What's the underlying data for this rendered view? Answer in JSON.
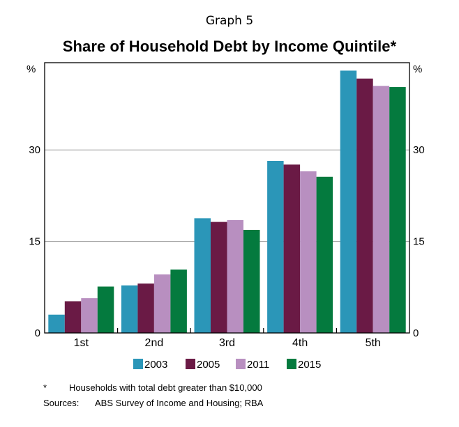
{
  "graph_label": "Graph 5",
  "colors": {
    "2003": "#2b96b8",
    "2005": "#6a1a45",
    "2011": "#b88fc0",
    "2015": "#047a3e"
  },
  "chart_data": {
    "type": "bar",
    "title": "Share of Household Debt by Income Quintile*",
    "unit_left": "%",
    "unit_right": "%",
    "categories": [
      "1st",
      "2nd",
      "3rd",
      "4th",
      "5th"
    ],
    "series": [
      {
        "name": "2003",
        "values": [
          3.0,
          7.8,
          18.8,
          28.2,
          43.0
        ]
      },
      {
        "name": "2005",
        "values": [
          5.2,
          8.1,
          18.2,
          27.6,
          41.7
        ]
      },
      {
        "name": "2011",
        "values": [
          5.7,
          9.6,
          18.5,
          26.5,
          40.5
        ]
      },
      {
        "name": "2015",
        "values": [
          7.6,
          10.4,
          16.9,
          25.6,
          40.3
        ]
      }
    ],
    "yticks": [
      0,
      15,
      30
    ],
    "ylim": [
      0,
      44.3
    ],
    "legend_position": "bottom",
    "grid": true
  },
  "footnote": {
    "symbol": "*",
    "text": "Households with total debt greater than $10,000"
  },
  "sources": {
    "label": "Sources:",
    "text": "ABS Survey of Income and Housing; RBA"
  }
}
